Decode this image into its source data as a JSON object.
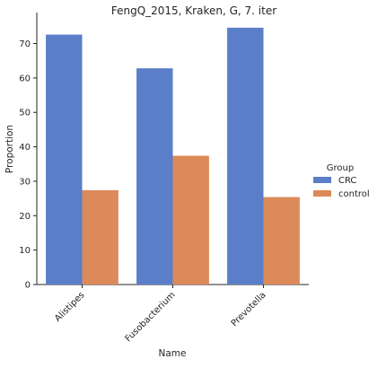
{
  "chart_data": {
    "type": "bar",
    "title": "FengQ_2015, Kraken, G, 7. iter",
    "xlabel": "Name",
    "ylabel": "Proportion",
    "categories": [
      "Alistipes",
      "Fusobacterium",
      "Prevotella"
    ],
    "series": [
      {
        "name": "CRC",
        "values": [
          72.6,
          62.8,
          74.6
        ],
        "color": "#5a7ec8"
      },
      {
        "name": "control",
        "values": [
          27.4,
          37.4,
          25.4
        ],
        "color": "#dc8a5a"
      }
    ],
    "ylim": [
      0,
      79
    ],
    "yticks": [
      0,
      10,
      20,
      30,
      40,
      50,
      60,
      70
    ],
    "legend": {
      "title": "Group",
      "placement": "right"
    },
    "grid": false
  }
}
